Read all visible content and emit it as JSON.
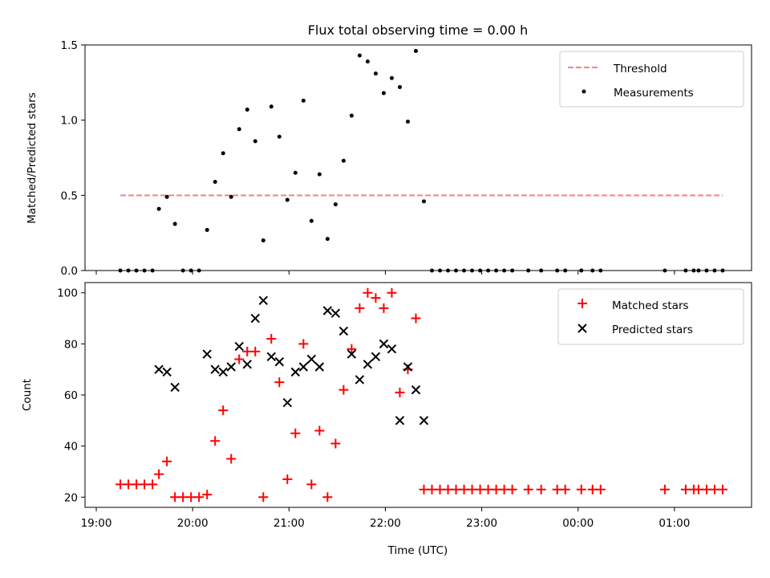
{
  "figure": {
    "title": "Flux total observing time = 0.00 h",
    "xlabel": "Time (UTC)"
  },
  "chart_data": [
    {
      "type": "scatter",
      "panel": "top",
      "ylabel": "Matched/Predicted stars",
      "xlim": [
        "18:53",
        "01:48"
      ],
      "ylim": [
        0,
        1.5
      ],
      "yticks": [
        0.0,
        0.5,
        1.0,
        1.5
      ],
      "ytick_labels": [
        "0.0",
        "0.5",
        "1.0",
        "1.5"
      ],
      "legend_position": "top-right",
      "threshold": {
        "name": "Threshold",
        "value": 0.5,
        "x_range": [
          "19:15",
          "01:30"
        ],
        "color": "#ff7f7f",
        "style": "dashed"
      },
      "series": [
        {
          "name": "Measurements",
          "color": "#000000",
          "marker": "dot",
          "points": [
            [
              "19:15",
              0.0
            ],
            [
              "19:20",
              0.0
            ],
            [
              "19:25",
              0.0
            ],
            [
              "19:30",
              0.0
            ],
            [
              "19:35",
              0.0
            ],
            [
              "19:39",
              0.41
            ],
            [
              "19:44",
              0.49
            ],
            [
              "19:49",
              0.31
            ],
            [
              "19:54",
              0.0
            ],
            [
              "19:59",
              0.0
            ],
            [
              "20:04",
              0.0
            ],
            [
              "20:09",
              0.27
            ],
            [
              "20:14",
              0.59
            ],
            [
              "20:19",
              0.78
            ],
            [
              "20:24",
              0.49
            ],
            [
              "20:29",
              0.94
            ],
            [
              "20:34",
              1.07
            ],
            [
              "20:39",
              0.86
            ],
            [
              "20:44",
              0.2
            ],
            [
              "20:49",
              1.09
            ],
            [
              "20:54",
              0.89
            ],
            [
              "20:59",
              0.47
            ],
            [
              "21:04",
              0.65
            ],
            [
              "21:09",
              1.13
            ],
            [
              "21:14",
              0.33
            ],
            [
              "21:19",
              0.64
            ],
            [
              "21:24",
              0.21
            ],
            [
              "21:29",
              0.44
            ],
            [
              "21:34",
              0.73
            ],
            [
              "21:39",
              1.03
            ],
            [
              "21:44",
              1.43
            ],
            [
              "21:49",
              1.39
            ],
            [
              "21:54",
              1.31
            ],
            [
              "21:59",
              1.18
            ],
            [
              "22:04",
              1.28
            ],
            [
              "22:09",
              1.22
            ],
            [
              "22:14",
              0.99
            ],
            [
              "22:19",
              1.46
            ],
            [
              "22:24",
              0.46
            ],
            [
              "22:29",
              0.0
            ],
            [
              "22:34",
              0.0
            ],
            [
              "22:39",
              0.0
            ],
            [
              "22:44",
              0.0
            ],
            [
              "22:49",
              0.0
            ],
            [
              "22:54",
              0.0
            ],
            [
              "22:59",
              0.0
            ],
            [
              "23:04",
              0.0
            ],
            [
              "23:09",
              0.0
            ],
            [
              "23:14",
              0.0
            ],
            [
              "23:19",
              0.0
            ],
            [
              "23:29",
              0.0
            ],
            [
              "23:37",
              0.0
            ],
            [
              "23:47",
              0.0
            ],
            [
              "23:52",
              0.0
            ],
            [
              "00:02",
              0.0
            ],
            [
              "00:09",
              0.0
            ],
            [
              "00:14",
              0.0
            ],
            [
              "00:54",
              0.0
            ],
            [
              "01:07",
              0.0
            ],
            [
              "01:12",
              0.0
            ],
            [
              "01:15",
              0.0
            ],
            [
              "01:20",
              0.0
            ],
            [
              "01:25",
              0.0
            ],
            [
              "01:30",
              0.0
            ]
          ]
        }
      ]
    },
    {
      "type": "scatter",
      "panel": "bottom",
      "ylabel": "Count",
      "xlabel": "Time (UTC)",
      "xlim": [
        "18:53",
        "01:48"
      ],
      "ylim": [
        16,
        104
      ],
      "yticks": [
        20,
        40,
        60,
        80,
        100
      ],
      "ytick_labels": [
        "20",
        "40",
        "60",
        "80",
        "100"
      ],
      "xticks": [
        "19:00",
        "20:00",
        "21:00",
        "22:00",
        "23:00",
        "00:00",
        "01:00"
      ],
      "legend_position": "top-right",
      "series": [
        {
          "name": "Matched stars",
          "color": "#ff0000",
          "marker": "plus",
          "points": [
            [
              "19:15",
              25
            ],
            [
              "19:20",
              25
            ],
            [
              "19:25",
              25
            ],
            [
              "19:30",
              25
            ],
            [
              "19:35",
              25
            ],
            [
              "19:39",
              29
            ],
            [
              "19:44",
              34
            ],
            [
              "19:49",
              20
            ],
            [
              "19:54",
              20
            ],
            [
              "19:59",
              20
            ],
            [
              "20:04",
              20
            ],
            [
              "20:09",
              21
            ],
            [
              "20:14",
              42
            ],
            [
              "20:19",
              54
            ],
            [
              "20:24",
              35
            ],
            [
              "20:29",
              74
            ],
            [
              "20:34",
              77
            ],
            [
              "20:39",
              77
            ],
            [
              "20:44",
              20
            ],
            [
              "20:49",
              82
            ],
            [
              "20:54",
              65
            ],
            [
              "20:59",
              27
            ],
            [
              "21:04",
              45
            ],
            [
              "21:09",
              80
            ],
            [
              "21:14",
              25
            ],
            [
              "21:19",
              46
            ],
            [
              "21:24",
              20
            ],
            [
              "21:29",
              41
            ],
            [
              "21:34",
              62
            ],
            [
              "21:39",
              78
            ],
            [
              "21:44",
              94
            ],
            [
              "21:49",
              100
            ],
            [
              "21:54",
              98
            ],
            [
              "21:59",
              94
            ],
            [
              "22:04",
              100
            ],
            [
              "22:09",
              61
            ],
            [
              "22:14",
              70
            ],
            [
              "22:19",
              90
            ],
            [
              "22:24",
              23
            ],
            [
              "22:29",
              23
            ],
            [
              "22:34",
              23
            ],
            [
              "22:39",
              23
            ],
            [
              "22:44",
              23
            ],
            [
              "22:49",
              23
            ],
            [
              "22:54",
              23
            ],
            [
              "22:59",
              23
            ],
            [
              "23:04",
              23
            ],
            [
              "23:09",
              23
            ],
            [
              "23:14",
              23
            ],
            [
              "23:19",
              23
            ],
            [
              "23:29",
              23
            ],
            [
              "23:37",
              23
            ],
            [
              "23:47",
              23
            ],
            [
              "23:52",
              23
            ],
            [
              "00:02",
              23
            ],
            [
              "00:09",
              23
            ],
            [
              "00:14",
              23
            ],
            [
              "00:54",
              23
            ],
            [
              "01:07",
              23
            ],
            [
              "01:12",
              23
            ],
            [
              "01:15",
              23
            ],
            [
              "01:20",
              23
            ],
            [
              "01:25",
              23
            ],
            [
              "01:30",
              23
            ]
          ]
        },
        {
          "name": "Predicted stars",
          "color": "#000000",
          "marker": "x",
          "points": [
            [
              "19:39",
              70
            ],
            [
              "19:44",
              69
            ],
            [
              "19:49",
              63
            ],
            [
              "20:09",
              76
            ],
            [
              "20:14",
              70
            ],
            [
              "20:19",
              69
            ],
            [
              "20:24",
              71
            ],
            [
              "20:29",
              79
            ],
            [
              "20:34",
              72
            ],
            [
              "20:39",
              90
            ],
            [
              "20:44",
              97
            ],
            [
              "20:49",
              75
            ],
            [
              "20:54",
              73
            ],
            [
              "20:59",
              57
            ],
            [
              "21:04",
              69
            ],
            [
              "21:09",
              71
            ],
            [
              "21:14",
              74
            ],
            [
              "21:19",
              71
            ],
            [
              "21:24",
              93
            ],
            [
              "21:29",
              92
            ],
            [
              "21:34",
              85
            ],
            [
              "21:39",
              76
            ],
            [
              "21:44",
              66
            ],
            [
              "21:49",
              72
            ],
            [
              "21:54",
              75
            ],
            [
              "21:59",
              80
            ],
            [
              "22:04",
              78
            ],
            [
              "22:09",
              50
            ],
            [
              "22:14",
              71
            ],
            [
              "22:19",
              62
            ],
            [
              "22:24",
              50
            ]
          ]
        }
      ]
    }
  ]
}
